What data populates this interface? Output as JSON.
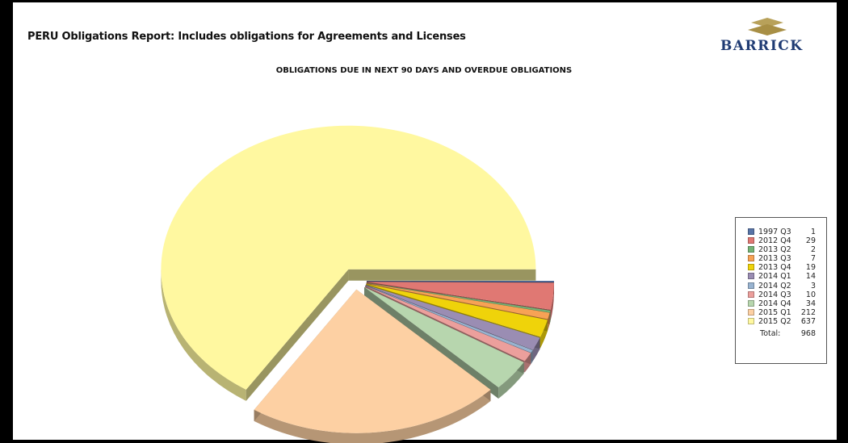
{
  "report": {
    "title": "PERU Obligations Report: Includes obligations for Agreements and Licenses",
    "logo_text": "BARRICK",
    "logo_color": "#1f3b73",
    "logo_mark_color": "#b8a15a"
  },
  "chart_data": {
    "type": "pie",
    "title": "OBLIGATIONS DUE IN NEXT 90 DAYS AND OVERDUE OBLIGATIONS",
    "style": "3d-exploded",
    "legend_position": "right",
    "categories": [
      "1997 Q3",
      "2012 Q4",
      "2013 Q2",
      "2013 Q3",
      "2013 Q4",
      "2014 Q1",
      "2014 Q2",
      "2014 Q3",
      "2014 Q4",
      "2015 Q1",
      "2015 Q2"
    ],
    "values": [
      1,
      29,
      2,
      7,
      19,
      14,
      3,
      10,
      34,
      212,
      637
    ],
    "colors": [
      "#5874a7",
      "#e07873",
      "#74b376",
      "#f7a255",
      "#efd30a",
      "#9a8db3",
      "#98b3d0",
      "#ec9f9c",
      "#b7d6ae",
      "#fdd0a3",
      "#fff8a0"
    ],
    "total_label": "Total:",
    "total": 968
  }
}
